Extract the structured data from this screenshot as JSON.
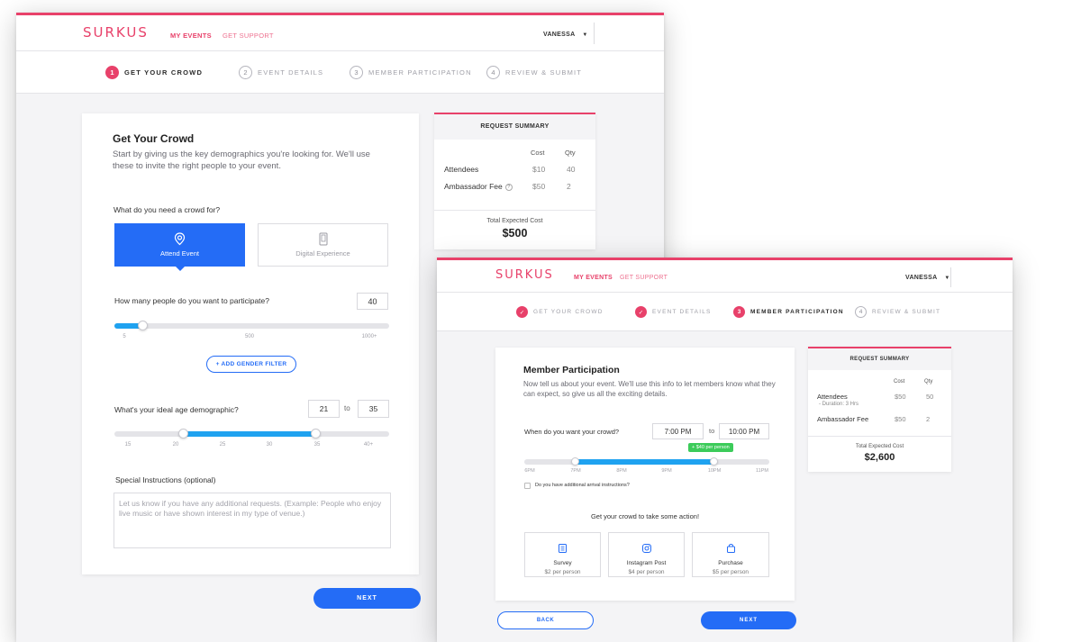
{
  "brand": {
    "logo": "SURKUS",
    "accent": "#e8416a",
    "primary": "#246cf6",
    "slider": "#1fa2f0"
  },
  "nav": {
    "my_events": "MY EVENTS",
    "get_support": "GET SUPPORT",
    "user": "VANESSA"
  },
  "steps": [
    {
      "num": "1",
      "label": "GET YOUR CROWD"
    },
    {
      "num": "2",
      "label": "EVENT DETAILS"
    },
    {
      "num": "3",
      "label": "MEMBER PARTICIPATION"
    },
    {
      "num": "4",
      "label": "REVIEW & SUBMIT"
    }
  ],
  "screen1": {
    "title": "Get Your Crowd",
    "intro": "Start by giving us the key demographics you're looking for. We'll use these to invite the right people to your event.",
    "crowd_question": "What do you need a crowd for?",
    "option_attend": "Attend Event",
    "option_digital": "Digital Experience",
    "people_question": "How many people do you want to participate?",
    "people_value": "40",
    "people_ticks": [
      "5",
      "500",
      "1000+"
    ],
    "gender_button": "+ ADD GENDER FILTER",
    "age_question": "What's your ideal age demographic?",
    "age_min": "21",
    "age_to": "to",
    "age_max": "35",
    "age_ticks": [
      "15",
      "20",
      "25",
      "30",
      "35",
      "40+"
    ],
    "instructions_label": "Special Instructions (optional)",
    "instructions_placeholder": "Let us know if you have any additional requests. (Example: People who enjoy live music or have shown interest in my type of venue.)",
    "next": "NEXT",
    "summary": {
      "title": "REQUEST SUMMARY",
      "col_cost": "Cost",
      "col_qty": "Qty",
      "rows": [
        {
          "label": "Attendees",
          "cost": "$10",
          "qty": "40"
        },
        {
          "label": "Ambassador Fee",
          "info": "?",
          "cost": "$50",
          "qty": "2"
        }
      ],
      "total_label": "Total Expected Cost",
      "total": "$500"
    }
  },
  "screen2": {
    "title": "Member Participation",
    "intro": "Now tell us about your event. We'll use this info to let members know what they can expect, so give us all the exciting details.",
    "time_question": "When do you want your crowd?",
    "time_start": "7:00 PM",
    "time_to": "to",
    "time_end": "10:00 PM",
    "time_badge": "+ $40 per person",
    "time_ticks": [
      "6PM",
      "7PM",
      "8PM",
      "9PM",
      "10PM",
      "11PM"
    ],
    "arrival_label": "Do you have additional arrival instructions?",
    "action_prompt": "Get your crowd to take some action!",
    "actions": [
      {
        "title": "Survey",
        "price": "$2 per person"
      },
      {
        "title": "Instagram Post",
        "price": "$4 per person"
      },
      {
        "title": "Purchase",
        "price": "$5 per person"
      }
    ],
    "back": "BACK",
    "next": "NEXT",
    "summary": {
      "title": "REQUEST SUMMARY",
      "col_cost": "Cost",
      "col_qty": "Qty",
      "rows": [
        {
          "label": "Attendees",
          "sub": "- Duration: 3 Hrs",
          "cost": "$50",
          "qty": "50"
        },
        {
          "label": "Ambassador Fee",
          "cost": "$50",
          "qty": "2"
        }
      ],
      "total_label": "Total Expected Cost",
      "total": "$2,600"
    }
  }
}
